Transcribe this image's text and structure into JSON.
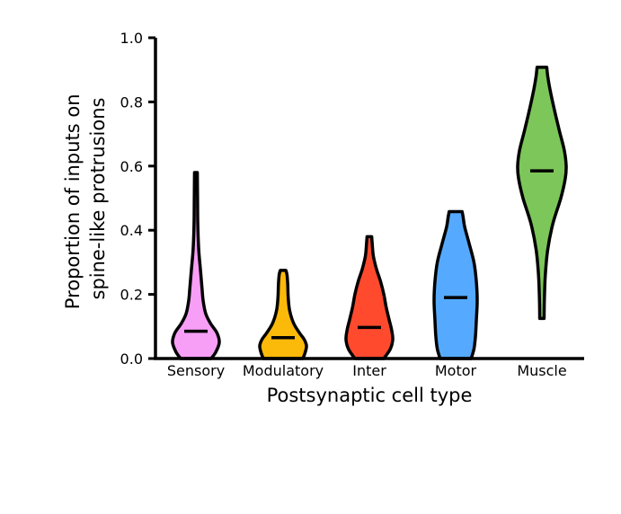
{
  "chart_data": {
    "type": "violin",
    "title": "",
    "xlabel": "Postsynaptic cell type",
    "ylabel_lines": [
      "Proportion of inputs on",
      "spine-like protrusions"
    ],
    "ylim": [
      0,
      1
    ],
    "yticks": [
      "0.0",
      "0.2",
      "0.4",
      "0.6",
      "0.8",
      "1.0"
    ],
    "grid": false,
    "legend": "none",
    "categories": [
      "Sensory",
      "Modulatory",
      "Inter",
      "Motor",
      "Muscle"
    ],
    "series": [
      {
        "category": "Sensory",
        "color": "#F79EF7",
        "min": 0.0,
        "max": 0.58,
        "median": 0.085,
        "profile": [
          [
            0.0,
            0.65
          ],
          [
            0.02,
            0.85
          ],
          [
            0.05,
            1.0
          ],
          [
            0.08,
            0.9
          ],
          [
            0.11,
            0.62
          ],
          [
            0.14,
            0.42
          ],
          [
            0.18,
            0.31
          ],
          [
            0.22,
            0.26
          ],
          [
            0.28,
            0.19
          ],
          [
            0.34,
            0.12
          ],
          [
            0.42,
            0.08
          ],
          [
            0.5,
            0.07
          ],
          [
            0.58,
            0.06
          ]
        ]
      },
      {
        "category": "Modulatory",
        "color": "#FBB90A",
        "min": 0.0,
        "max": 0.275,
        "median": 0.065,
        "profile": [
          [
            0.0,
            0.85
          ],
          [
            0.02,
            0.95
          ],
          [
            0.04,
            1.0
          ],
          [
            0.06,
            0.9
          ],
          [
            0.08,
            0.7
          ],
          [
            0.11,
            0.45
          ],
          [
            0.15,
            0.28
          ],
          [
            0.19,
            0.22
          ],
          [
            0.23,
            0.2
          ],
          [
            0.26,
            0.17
          ],
          [
            0.275,
            0.12
          ]
        ]
      },
      {
        "category": "Inter",
        "color": "#FF4A2E",
        "min": 0.0,
        "max": 0.38,
        "median": 0.097,
        "profile": [
          [
            0.0,
            0.62
          ],
          [
            0.03,
            0.9
          ],
          [
            0.06,
            1.0
          ],
          [
            0.09,
            0.95
          ],
          [
            0.12,
            0.85
          ],
          [
            0.16,
            0.72
          ],
          [
            0.2,
            0.62
          ],
          [
            0.24,
            0.48
          ],
          [
            0.28,
            0.3
          ],
          [
            0.32,
            0.17
          ],
          [
            0.36,
            0.12
          ],
          [
            0.38,
            0.1
          ]
        ]
      },
      {
        "category": "Motor",
        "color": "#55AAFF",
        "min": 0.0,
        "max": 0.458,
        "median": 0.19,
        "profile": [
          [
            0.0,
            0.72
          ],
          [
            0.03,
            0.85
          ],
          [
            0.07,
            0.92
          ],
          [
            0.12,
            0.96
          ],
          [
            0.18,
            1.0
          ],
          [
            0.24,
            0.96
          ],
          [
            0.3,
            0.85
          ],
          [
            0.36,
            0.62
          ],
          [
            0.41,
            0.42
          ],
          [
            0.44,
            0.35
          ],
          [
            0.458,
            0.3
          ]
        ]
      },
      {
        "category": "Muscle",
        "color": "#7DC65A",
        "min": 0.125,
        "max": 0.908,
        "median": 0.585,
        "profile": [
          [
            0.125,
            0.09
          ],
          [
            0.18,
            0.1
          ],
          [
            0.26,
            0.14
          ],
          [
            0.34,
            0.24
          ],
          [
            0.42,
            0.45
          ],
          [
            0.5,
            0.78
          ],
          [
            0.56,
            0.96
          ],
          [
            0.6,
            1.0
          ],
          [
            0.65,
            0.92
          ],
          [
            0.71,
            0.72
          ],
          [
            0.78,
            0.5
          ],
          [
            0.84,
            0.33
          ],
          [
            0.88,
            0.24
          ],
          [
            0.908,
            0.2
          ]
        ]
      }
    ]
  }
}
